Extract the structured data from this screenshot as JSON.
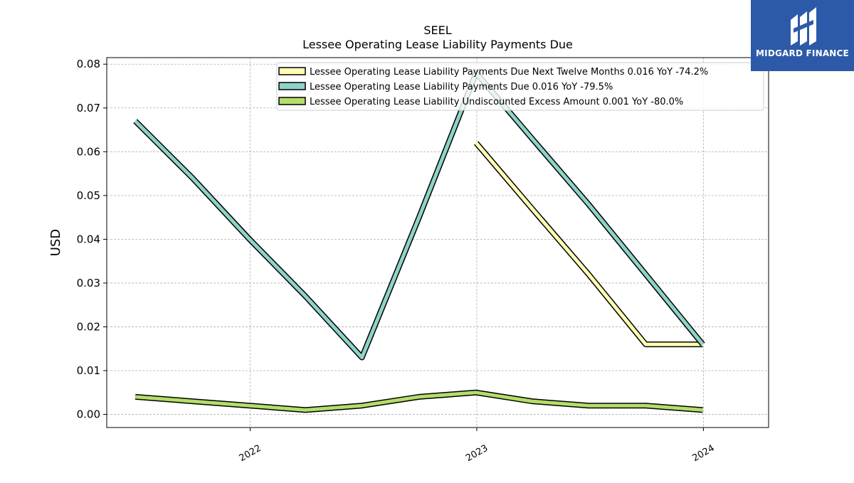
{
  "chart_data": {
    "type": "line",
    "title": "SEEL",
    "subtitle": "Lessee Operating Lease Liability Payments Due",
    "ylabel": "USD",
    "xlabel": "",
    "ylim": [
      -0.003,
      0.0815
    ],
    "xlim": [
      "2021-05-15",
      "2024-04-15"
    ],
    "yticks": [
      0.0,
      0.01,
      0.02,
      0.03,
      0.04,
      0.05,
      0.06,
      0.07,
      0.08
    ],
    "ytick_labels": [
      "0.00",
      "0.01",
      "0.02",
      "0.03",
      "0.04",
      "0.05",
      "0.06",
      "0.07",
      "0.08"
    ],
    "xticks": [
      "2022-01-01",
      "2023-01-01",
      "2024-01-01"
    ],
    "xtick_labels": [
      "2022",
      "2023",
      "2024"
    ],
    "grid": true,
    "legend_position": "top-right",
    "series": [
      {
        "name": "Lessee Operating Lease Liability Payments Due Next Twelve Months  0.016 YoY -74.2%",
        "color": "#ffffb3",
        "x": [
          "2022-12-31",
          "2023-03-31",
          "2023-06-30",
          "2023-09-30",
          "2023-12-31"
        ],
        "y": [
          0.062,
          0.047,
          0.032,
          0.016,
          0.016
        ]
      },
      {
        "name": "Lessee Operating Lease Liability Payments Due  0.016 YoY -79.5%",
        "color": "#8dd3c7",
        "x": [
          "2021-06-30",
          "2021-09-30",
          "2021-12-31",
          "2022-03-31",
          "2022-06-30",
          "2022-09-30",
          "2022-12-31",
          "2023-03-31",
          "2023-06-30",
          "2023-09-30",
          "2023-12-31"
        ],
        "y": [
          0.067,
          0.054,
          0.04,
          0.027,
          0.013,
          0.045,
          0.078,
          0.063,
          0.048,
          0.032,
          0.016
        ]
      },
      {
        "name": "Lessee Operating Lease Liability Undiscounted Excess Amount  0.001 YoY -80.0%",
        "color": "#b3de69",
        "x": [
          "2021-06-30",
          "2021-09-30",
          "2021-12-31",
          "2022-03-31",
          "2022-06-30",
          "2022-09-30",
          "2022-12-31",
          "2023-03-31",
          "2023-06-30",
          "2023-09-30",
          "2023-12-31"
        ],
        "y": [
          0.004,
          0.003,
          0.002,
          0.001,
          0.002,
          0.004,
          0.005,
          0.003,
          0.002,
          0.002,
          0.001
        ]
      }
    ]
  },
  "logo": {
    "text": "MIDGARD FINANCE",
    "background": "#2d5aa8"
  }
}
